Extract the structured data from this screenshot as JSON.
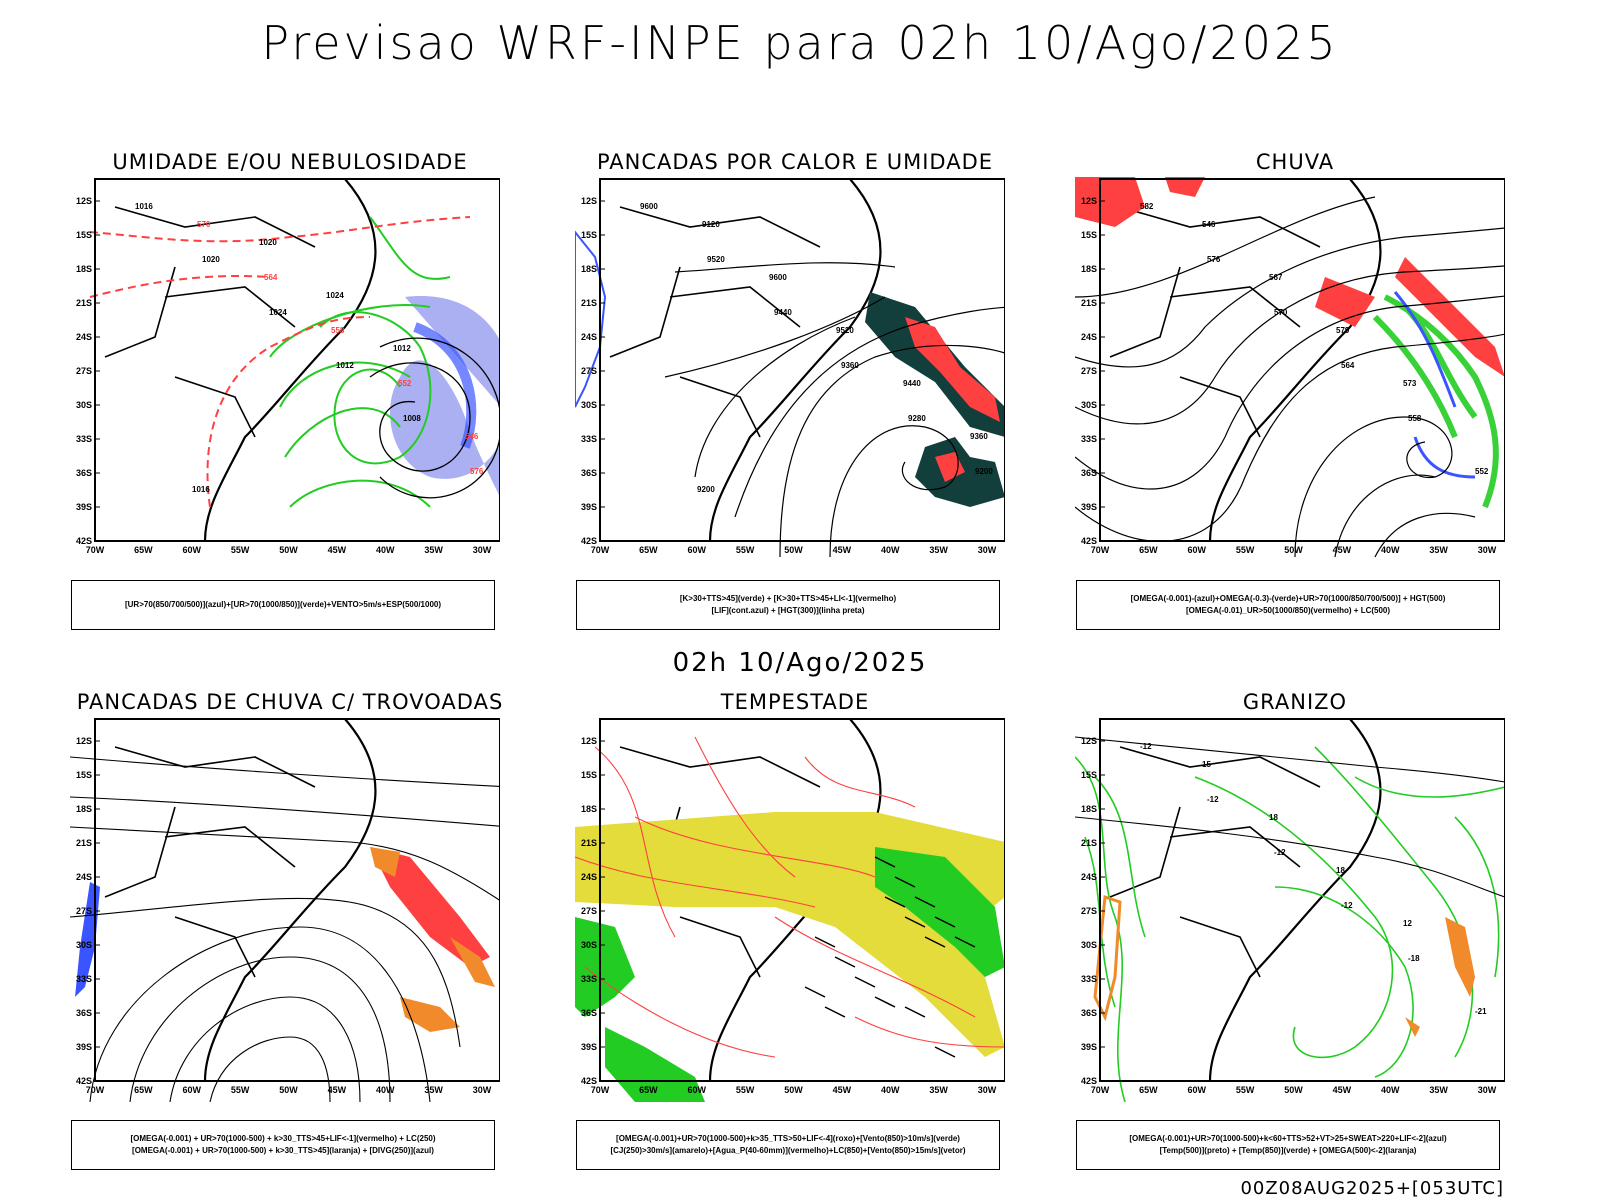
{
  "header": {
    "title": "Previsao WRF-INPE  para 02h 10/Ago/2025"
  },
  "mid_title": "02h 10/Ago/2025",
  "footer": "00Z08AUG2025+[053UTC]",
  "axes": {
    "lat_labels": [
      "12S",
      "15S",
      "18S",
      "21S",
      "24S",
      "27S",
      "30S",
      "33S",
      "36S",
      "39S",
      "42S"
    ],
    "lon_labels": [
      "70W",
      "65W",
      "60W",
      "55W",
      "50W",
      "45W",
      "40W",
      "35W",
      "30W"
    ]
  },
  "panels": [
    {
      "title": "UMIDADE E/OU NEBULOSIDADE",
      "legend": [
        "[UR>70(850/700/500)](azul)+[UR>70(1000/850)](verde)+VENTO>5m/s+ESP(500/1000)"
      ],
      "contour_labels": [
        "1016",
        "1020",
        "1024",
        "1012",
        "1008",
        "576",
        "570",
        "564",
        "558",
        "552",
        "546",
        "1016",
        "1020",
        "1024",
        "1012"
      ]
    },
    {
      "title": "PANCADAS POR CALOR E UMIDADE",
      "legend": [
        "[K>30+TTS>45](verde) + [K>30+TTS>45+LI<-1](vermelho)",
        "[LIF](cont.azul) + [HGT(300)](linha preta)"
      ],
      "contour_labels": [
        "9600",
        "9520",
        "9440",
        "9360",
        "9280",
        "9200",
        "9120",
        "9600",
        "9520",
        "9440",
        "9360",
        "9200"
      ]
    },
    {
      "title": "CHUVA",
      "legend": [
        "[OMEGA(-0.001)-(azul)+OMEGA(-0.3)-(verde)+UR>70(1000/850/700/500)] + HGT(500)",
        "[OMEGA(-0.01)_UR>50(1000/850)(vermelho) + LC(500)"
      ],
      "contour_labels": [
        "582",
        "576",
        "570",
        "564",
        "558",
        "552",
        "546",
        "567",
        "579",
        "573"
      ]
    },
    {
      "title": "PANCADAS DE CHUVA C/ TROVOADAS",
      "legend": [
        "[OMEGA(-0.001) + UR>70(1000-500) + k>30_TTS>45+LIF<-1](vermelho) + LC(250)",
        "[OMEGA(-0.001) + UR>70(1000-500) + k>30_TTS>45](laranja) + [DIVG(250)](azul)"
      ],
      "contour_labels": []
    },
    {
      "title": "TEMPESTADE",
      "legend": [
        "[OMEGA(-0.001)+UR>70(1000-500)+k>35_TTS>50+LIF<-4](roxo)+[Vento(850)>10m/s](verde)",
        "[CJ(250)>30m/s](amarelo)+[Agua_P(40-60mm)](vermelho)+LC(850)+[Vento(850)>15m/s](vetor)"
      ],
      "contour_labels": []
    },
    {
      "title": "GRANIZO",
      "legend": [
        "[OMEGA(-0.001)+UR>70(1000-500)+k<60+TTS>52+VT>25+SWEAT>220+LIF<-2](azul)",
        "[Temp(500)](preto) + [Temp(850)](verde) + [OMEGA(500)<-2](laranja)"
      ],
      "contour_labels": [
        "-12",
        "-12",
        "-12",
        "-12",
        "-18",
        "-21",
        "15",
        "18",
        "18",
        "12"
      ]
    }
  ],
  "colors": {
    "red": "#ff4040",
    "green": "#22cc22",
    "blue": "#3a55ff",
    "lavender": "#8f95ee",
    "darkteal": "#123f3c",
    "yellow": "#e3dc3a",
    "orange": "#f08a2a",
    "black": "#000000"
  }
}
